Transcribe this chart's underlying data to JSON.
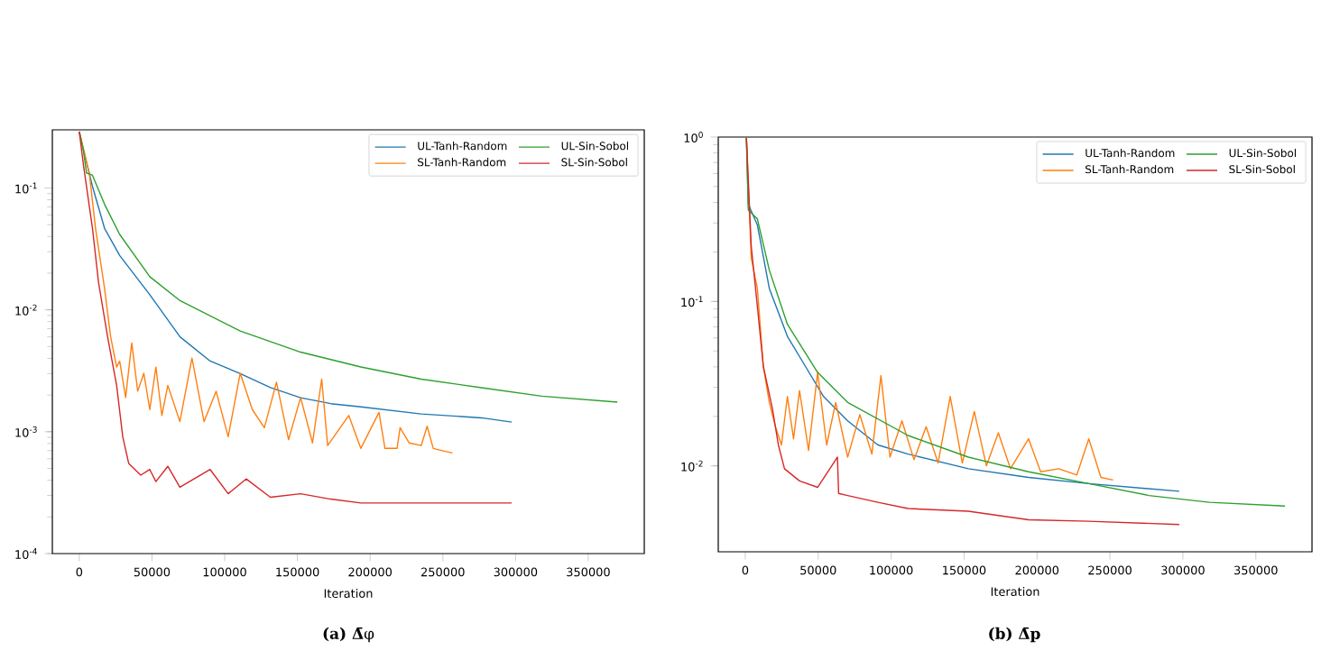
{
  "chart_data": [
    {
      "type": "line",
      "xlabel": "Iteration",
      "annotations": [
        "**(a) Δ̄**φ"
      ],
      "log": "y",
      "legend": "top right",
      "xlim": [
        -18500,
        388500
      ],
      "ylim": [
        0.0001,
        0.3
      ],
      "xticks": [
        0,
        50000,
        100000,
        150000,
        200000,
        250000,
        300000,
        350000
      ],
      "yticks": [
        {
          "value": 0.0001,
          "label": "10$^{-4}$"
        },
        {
          "value": 0.001,
          "label": "10$^{-3}$"
        },
        {
          "value": 0.01,
          "label": "10$^{-2}$"
        },
        {
          "value": 0.1,
          "label": "10$^{-1}$"
        }
      ],
      "series": [
        {
          "name": "UL-Tanh-Random",
          "color": "#1f77b4",
          "x": [
            0,
            5000,
            9100,
            17400,
            27800,
            48500,
            69300,
            90000,
            110700,
            131500,
            152200,
            172900,
            193600,
            235100,
            276500,
            297300
          ],
          "values": [
            0.29,
            0.163,
            0.103,
            0.0466,
            0.0279,
            0.0133,
            0.006,
            0.0038,
            0.003,
            0.0023,
            0.0019,
            0.0017,
            0.0016,
            0.0014,
            0.0013,
            0.0012
          ]
        },
        {
          "name": "SL-Tanh-Random",
          "color": "#ff7f0e",
          "x": [
            0,
            7000,
            11200,
            17400,
            21600,
            25700,
            27800,
            31900,
            36100,
            40200,
            44400,
            48500,
            52700,
            56800,
            60900,
            69200,
            77500,
            85800,
            94100,
            102400,
            110700,
            119000,
            127300,
            135600,
            143900,
            152200,
            160400,
            166700,
            170800,
            185300,
            193600,
            206100,
            210200,
            218500,
            220600,
            226800,
            235100,
            239200,
            243400,
            251700,
            256600
          ],
          "values": [
            0.29,
            0.13,
            0.0466,
            0.015,
            0.006,
            0.00339,
            0.0038,
            0.00191,
            0.00535,
            0.00215,
            0.00302,
            0.00152,
            0.00339,
            0.00136,
            0.0024,
            0.00121,
            0.00402,
            0.00121,
            0.00215,
            0.00091,
            0.00302,
            0.00152,
            0.00108,
            0.00255,
            0.00086,
            0.00191,
            0.00081,
            0.0027,
            0.00077,
            0.00136,
            0.00073,
            0.00144,
            0.00073,
            0.00073,
            0.00108,
            0.00081,
            0.00077,
            0.00111,
            0.00073,
            0.00069,
            0.00067
          ]
        },
        {
          "name": "UL-Sin-Sobol",
          "color": "#2ca02c",
          "x": [
            0,
            2900,
            5000,
            9100,
            17400,
            27800,
            48500,
            69300,
            110700,
            152200,
            193600,
            235100,
            276500,
            318000,
            370000
          ],
          "values": [
            0.29,
            0.2,
            0.133,
            0.127,
            0.0735,
            0.0416,
            0.0187,
            0.0119,
            0.0067,
            0.0045,
            0.0034,
            0.0027,
            0.0023,
            0.00196,
            0.00175
          ]
        },
        {
          "name": "SL-Sin-Sobol",
          "color": "#d62728",
          "x": [
            0,
            2900,
            9100,
            13300,
            19500,
            25700,
            29900,
            34000,
            42300,
            48500,
            52700,
            60900,
            69200,
            90000,
            102400,
            114800,
            131400,
            152200,
            172900,
            193600,
            235100,
            276500,
            297300
          ],
          "values": [
            0.29,
            0.154,
            0.0466,
            0.0167,
            0.006,
            0.0024,
            0.00091,
            0.00055,
            0.00044,
            0.00049,
            0.00039,
            0.00052,
            0.00035,
            0.00049,
            0.00031,
            0.00041,
            0.00029,
            0.00031,
            0.00028,
            0.00026,
            0.00026,
            0.00026,
            0.00026
          ]
        }
      ]
    },
    {
      "type": "line",
      "xlabel": "Iteration",
      "annotations": [
        "**(b) Δ̄p**"
      ],
      "log": "y",
      "legend": "top right",
      "xlim": [
        -18500,
        388500
      ],
      "ylim": [
        0.003,
        1
      ],
      "xticks": [
        0,
        50000,
        100000,
        150000,
        200000,
        250000,
        300000,
        350000
      ],
      "yticks": [
        {
          "value": 0.01,
          "label": "10$^{-2}$"
        },
        {
          "value": 0.1,
          "label": "10$^{-1}$"
        },
        {
          "value": 1,
          "label": "10$^{0}$"
        }
      ],
      "series": [
        {
          "name": "UL-Tanh-Random",
          "color": "#1f77b4",
          "x": [
            800,
            2100,
            8300,
            16500,
            28900,
            41300,
            53700,
            70200,
            90900,
            111600,
            152900,
            194200,
            235500,
            297500
          ],
          "values": [
            0.99,
            0.39,
            0.292,
            0.12,
            0.0613,
            0.0402,
            0.0264,
            0.0188,
            0.0134,
            0.0118,
            0.0096,
            0.0085,
            0.0078,
            0.007
          ]
        },
        {
          "name": "SL-Tanh-Random",
          "color": "#ff7f0e",
          "x": [
            800,
            4100,
            8300,
            12400,
            16500,
            20700,
            24800,
            28900,
            33100,
            37200,
            43400,
            49600,
            55800,
            62000,
            70200,
            78500,
            86800,
            93000,
            99200,
            107400,
            115700,
            124000,
            132200,
            140500,
            148800,
            157000,
            165300,
            173500,
            181800,
            194200,
            202500,
            214900,
            227300,
            235500,
            243800,
            252100
          ],
          "values": [
            0.99,
            0.184,
            0.12,
            0.0402,
            0.0243,
            0.0173,
            0.0134,
            0.0264,
            0.0146,
            0.0287,
            0.0124,
            0.037,
            0.0134,
            0.0243,
            0.0113,
            0.0205,
            0.0118,
            0.0354,
            0.0113,
            0.0188,
            0.0109,
            0.0173,
            0.0104,
            0.0264,
            0.0104,
            0.0214,
            0.01,
            0.0159,
            0.0096,
            0.0146,
            0.0092,
            0.0096,
            0.0088,
            0.0146,
            0.0085,
            0.0082
          ]
        },
        {
          "name": "UL-Sin-Sobol",
          "color": "#2ca02c",
          "x": [
            800,
            2100,
            8300,
            16500,
            28900,
            49600,
            70200,
            111600,
            152900,
            194200,
            235500,
            276800,
            318200,
            370000
          ],
          "values": [
            0.99,
            0.36,
            0.318,
            0.155,
            0.0726,
            0.037,
            0.0243,
            0.0153,
            0.0113,
            0.0092,
            0.0078,
            0.0066,
            0.006,
            0.0057
          ]
        },
        {
          "name": "SL-Sin-Sobol",
          "color": "#d62728",
          "x": [
            800,
            4100,
            8300,
            12400,
            18600,
            22700,
            26900,
            37200,
            49600,
            63200,
            64000,
            70200,
            90900,
            111600,
            152900,
            194200,
            235500,
            297500
          ],
          "values": [
            0.99,
            0.217,
            0.0935,
            0.0402,
            0.0223,
            0.0134,
            0.0096,
            0.0081,
            0.0074,
            0.0113,
            0.0068,
            0.0066,
            0.006,
            0.0055,
            0.0053,
            0.0047,
            0.0046,
            0.0044
          ]
        }
      ]
    }
  ]
}
